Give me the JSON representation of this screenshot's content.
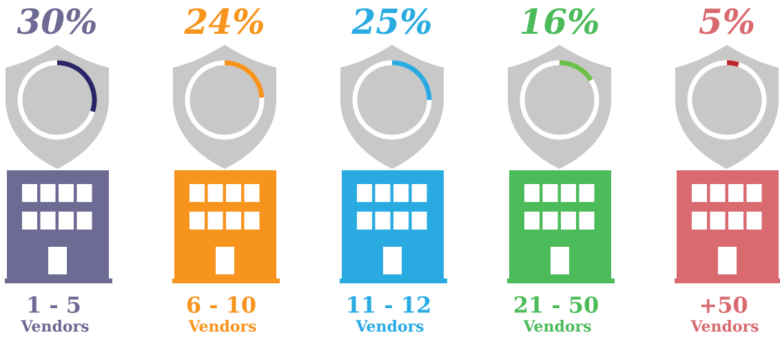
{
  "chart_data": {
    "type": "shield-gauge",
    "categories": [
      "1 - 5",
      "6 - 10",
      "11 - 12",
      "21 - 50",
      "+50"
    ],
    "sublabel": "Vendors",
    "values": [
      30,
      24,
      25,
      16,
      5
    ],
    "value_labels": [
      "30%",
      "24%",
      "25%",
      "16%",
      "5%"
    ],
    "colors": [
      "#6d6a93",
      "#f7941d",
      "#29abe2",
      "#4cbb5a",
      "#d86a70"
    ],
    "arc_colors": [
      "#2a2566",
      "#f7941d",
      "#29abe2",
      "#6cc04a",
      "#c0272d"
    ],
    "ylim": [
      0,
      100
    ]
  }
}
